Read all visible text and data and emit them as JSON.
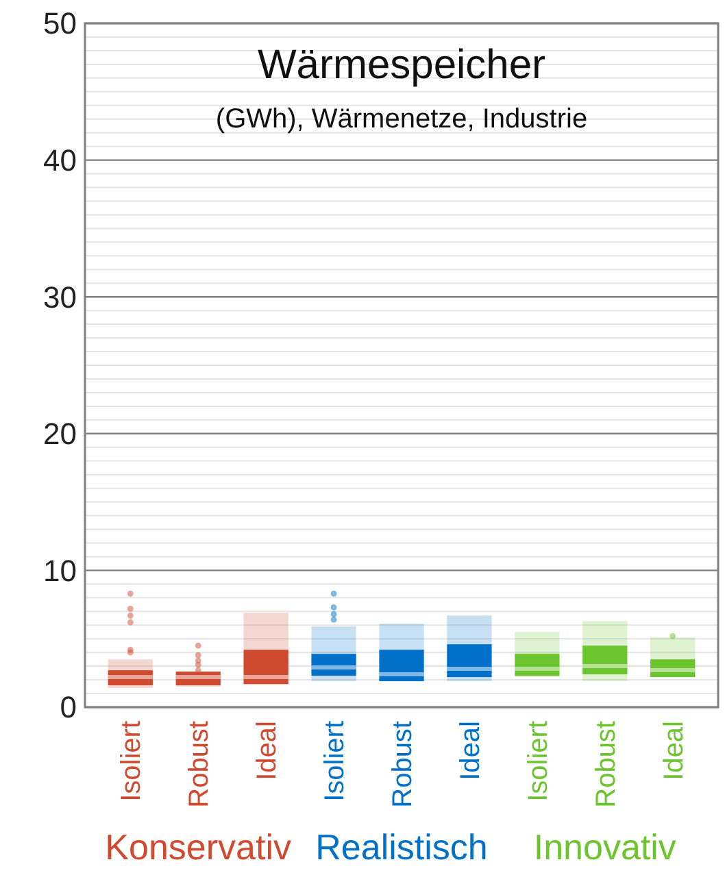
{
  "chart_data": {
    "type": "box",
    "title": "Wärmespeicher",
    "subtitle": "(GWh), Wärmenetze, Industrie",
    "categories": [
      "Isoliert",
      "Robust",
      "Ideal",
      "Isoliert",
      "Robust",
      "Ideal",
      "Isoliert",
      "Robust",
      "Ideal"
    ],
    "ylim": [
      0,
      50
    ],
    "yticks": [
      0,
      {
        "value": 1,
        "label": null
      },
      {
        "value": 2,
        "label": null
      },
      {
        "value": 3,
        "label": null
      },
      {
        "value": 4,
        "label": null
      },
      {
        "value": 5,
        "label": null
      },
      {
        "value": 6,
        "label": null
      },
      {
        "value": 7,
        "label": null
      },
      {
        "value": 8,
        "label": null
      },
      {
        "value": 9,
        "label": null
      },
      10,
      {
        "value": 11,
        "label": null
      },
      {
        "value": 12,
        "label": null
      },
      {
        "value": 13,
        "label": null
      },
      {
        "value": 14,
        "label": null
      },
      {
        "value": 15,
        "label": null
      },
      {
        "value": 16,
        "label": null
      },
      {
        "value": 17,
        "label": null
      },
      {
        "value": 18,
        "label": null
      },
      {
        "value": 19,
        "label": null
      },
      20,
      {
        "value": 21,
        "label": null
      },
      {
        "value": 22,
        "label": null
      },
      {
        "value": 23,
        "label": null
      },
      {
        "value": 24,
        "label": null
      },
      {
        "value": 25,
        "label": null
      },
      {
        "value": 26,
        "label": null
      },
      {
        "value": 27,
        "label": null
      },
      {
        "value": 28,
        "label": null
      },
      {
        "value": 29,
        "label": null
      },
      30,
      {
        "value": 31,
        "label": null
      },
      {
        "value": 32,
        "label": null
      },
      {
        "value": 33,
        "label": null
      },
      {
        "value": 34,
        "label": null
      },
      {
        "value": 35,
        "label": null
      },
      {
        "value": 36,
        "label": null
      },
      {
        "value": 37,
        "label": null
      },
      {
        "value": 38,
        "label": null
      },
      {
        "value": 39,
        "label": null
      },
      40,
      {
        "value": 41,
        "label": null
      },
      {
        "value": 42,
        "label": null
      },
      {
        "value": 43,
        "label": null
      },
      {
        "value": 44,
        "label": null
      },
      {
        "value": 45,
        "label": null
      },
      {
        "value": 46,
        "label": null
      },
      {
        "value": 47,
        "label": null
      },
      {
        "value": 48,
        "label": null
      },
      {
        "value": 49,
        "label": null
      },
      50
    ],
    "grid": "y",
    "series": [
      {
        "name": "Konservativ",
        "color": "#d04a30",
        "boxes": [
          {
            "low": 1.4,
            "q1": 1.6,
            "median": 2.2,
            "q3": 2.7,
            "high": 3.5,
            "outliers": [
              8.3,
              7.2,
              6.7,
              6.2,
              4.2,
              4.0
            ]
          },
          {
            "low": 1.5,
            "q1": 1.6,
            "median": 2.2,
            "q3": 2.6,
            "high": 2.6,
            "outliers": [
              4.5,
              3.8,
              3.4,
              3.1,
              2.7
            ]
          },
          {
            "low": 1.6,
            "q1": 1.7,
            "median": 2.2,
            "q3": 4.2,
            "high": 6.9
          },
          null,
          null,
          null,
          null,
          null,
          null
        ]
      },
      {
        "name": "Realistisch",
        "color": "#0070c8",
        "boxes": [
          null,
          null,
          null,
          {
            "low": 1.9,
            "q1": 2.3,
            "median": 2.9,
            "q3": 3.9,
            "high": 5.9,
            "outliers": [
              8.3,
              7.3,
              6.8,
              6.4
            ]
          },
          {
            "low": 1.9,
            "q1": 1.9,
            "median": 2.4,
            "q3": 4.2,
            "high": 6.1
          },
          {
            "low": 1.9,
            "q1": 2.2,
            "median": 2.8,
            "q3": 4.6,
            "high": 6.7
          },
          null,
          null,
          null
        ]
      },
      {
        "name": "Innovativ",
        "color": "#6cc42e",
        "boxes": [
          null,
          null,
          null,
          null,
          null,
          null,
          {
            "low": 2.2,
            "q1": 2.3,
            "median": 2.8,
            "q3": 3.9,
            "high": 5.5
          },
          {
            "low": 1.9,
            "q1": 2.4,
            "median": 3.0,
            "q3": 4.5,
            "high": 6.3
          },
          {
            "low": 2.2,
            "q1": 2.2,
            "median": 2.7,
            "q3": 3.5,
            "high": 5.1,
            "outliers": [
              5.2
            ]
          }
        ]
      }
    ]
  }
}
